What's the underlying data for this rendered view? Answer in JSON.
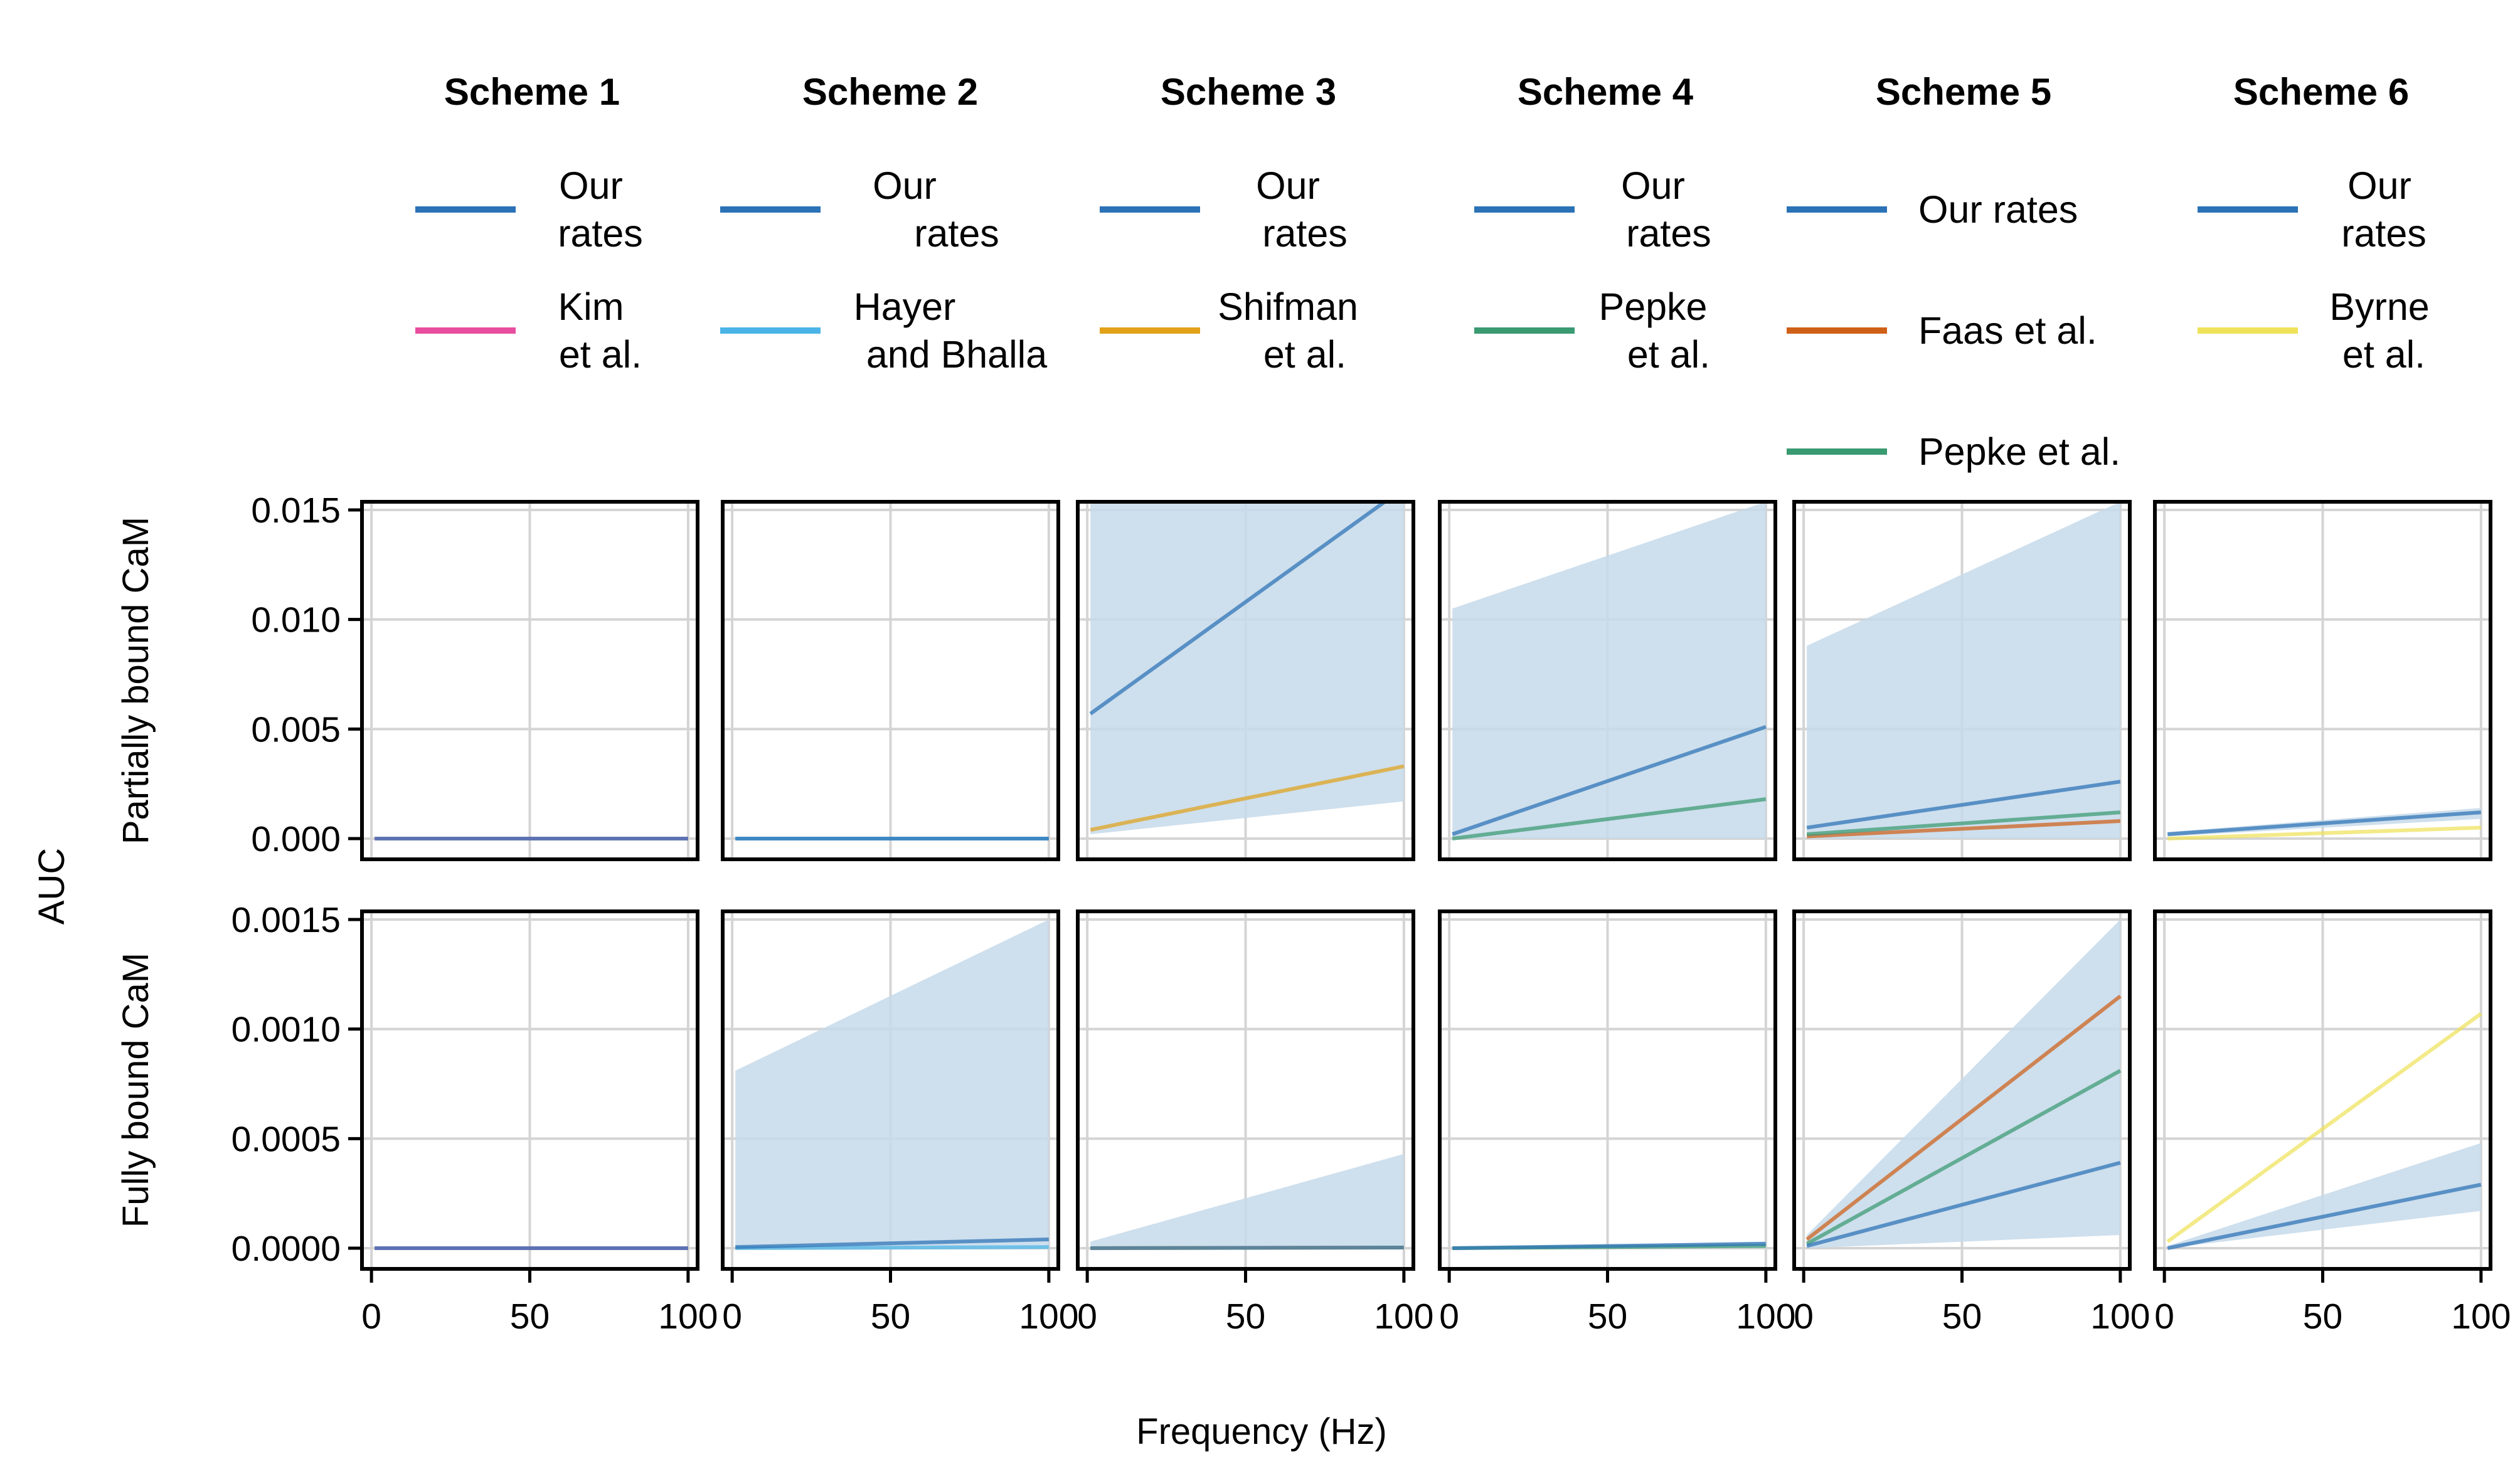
{
  "figure": {
    "supylabel": "AUC",
    "supxlabel": "Frequency (Hz)",
    "row_labels": [
      "Partially bound CaM",
      "Fully bound CaM"
    ]
  },
  "colors": {
    "our_rates": "#2b72b6",
    "band": "#c6d9ea",
    "kim": "#e84d9f",
    "hayer": "#4bb4e6",
    "shifman": "#e1a21a",
    "pepke": "#3a9a72",
    "faas": "#cf6017",
    "byrne": "#efe25a",
    "grid": "#d4d4d4",
    "frame": "#000000"
  },
  "legends": [
    {
      "header": "Scheme 1",
      "entries": [
        {
          "lines": [
            "Our",
            "rates"
          ],
          "color_key": "our_rates"
        },
        {
          "lines": [
            "Kim",
            "et al."
          ],
          "color_key": "kim"
        }
      ]
    },
    {
      "header": "Scheme 2",
      "entries": [
        {
          "lines": [
            "Our",
            "rates"
          ],
          "color_key": "our_rates"
        },
        {
          "lines": [
            "Hayer",
            "and Bhalla"
          ],
          "color_key": "hayer"
        }
      ]
    },
    {
      "header": "Scheme 3",
      "entries": [
        {
          "lines": [
            "Our",
            "rates"
          ],
          "color_key": "our_rates"
        },
        {
          "lines": [
            "Shifman",
            "et al."
          ],
          "color_key": "shifman"
        }
      ]
    },
    {
      "header": "Scheme 4",
      "entries": [
        {
          "lines": [
            "Our",
            "rates"
          ],
          "color_key": "our_rates"
        },
        {
          "lines": [
            "Pepke",
            "et al."
          ],
          "color_key": "pepke"
        }
      ]
    },
    {
      "header": "Scheme 5",
      "entries": [
        {
          "lines": [
            "Our rates"
          ],
          "color_key": "our_rates"
        },
        {
          "lines": [
            "Faas et al."
          ],
          "color_key": "faas"
        },
        {
          "lines": [
            "Pepke et al."
          ],
          "color_key": "pepke"
        }
      ]
    },
    {
      "header": "Scheme 6",
      "entries": [
        {
          "lines": [
            "Our",
            "rates"
          ],
          "color_key": "our_rates"
        },
        {
          "lines": [
            "Byrne",
            "et al."
          ],
          "color_key": "byrne"
        }
      ]
    }
  ],
  "chart_data": {
    "type": "line",
    "layout": "grid 2 rows x 6 columns, shared axes",
    "grid": true,
    "xlim": [
      -3,
      103
    ],
    "x_ticks": [
      0,
      50,
      100
    ],
    "x_tick_labels": [
      "0",
      "50",
      "100"
    ],
    "rows": [
      {
        "label": "Partially bound CaM",
        "ylim": [
          -0.001,
          0.016
        ],
        "y_ticks": [
          0,
          0.005,
          0.01,
          0.015
        ],
        "y_tick_labels": [
          "0.000",
          "0.005",
          "0.010",
          "0.015"
        ]
      },
      {
        "label": "Fully bound CaM",
        "ylim": [
          -0.0001,
          0.0015
        ],
        "y_ticks": [
          0,
          0.0005,
          0.001,
          0.0015
        ],
        "y_tick_labels": [
          "0.0000",
          "0.0005",
          "0.0010",
          "0.0015"
        ]
      }
    ],
    "panels": [
      {
        "row": 0,
        "col": 0,
        "band": null,
        "series": [
          {
            "name": "Our rates",
            "color_key": "our_rates",
            "x": [
              1,
              100
            ],
            "y": [
              0,
              0
            ]
          },
          {
            "name": "Kim et al.",
            "color_key": "kim",
            "x": [
              1,
              100
            ],
            "y": [
              0,
              0
            ]
          }
        ]
      },
      {
        "row": 0,
        "col": 1,
        "band": null,
        "series": [
          {
            "name": "Our rates",
            "color_key": "our_rates",
            "x": [
              1,
              100
            ],
            "y": [
              0,
              0
            ]
          },
          {
            "name": "Hayer and Bhalla",
            "color_key": "hayer",
            "x": [
              1,
              100
            ],
            "y": [
              0,
              0
            ]
          }
        ]
      },
      {
        "row": 0,
        "col": 2,
        "band": {
          "x": [
            1,
            100
          ],
          "lower": [
            0.0002,
            0.0017
          ],
          "upper": [
            0.016,
            0.016
          ]
        },
        "series": [
          {
            "name": "Our rates",
            "color_key": "our_rates",
            "x": [
              1,
              100
            ],
            "y": [
              0.0057,
              0.016
            ]
          },
          {
            "name": "Shifman et al.",
            "color_key": "shifman",
            "x": [
              1,
              100
            ],
            "y": [
              0.0004,
              0.0033
            ]
          }
        ]
      },
      {
        "row": 0,
        "col": 3,
        "band": {
          "x": [
            1,
            100
          ],
          "lower": [
            0.0,
            0.0
          ],
          "upper": [
            0.0105,
            0.016
          ]
        },
        "series": [
          {
            "name": "Our rates",
            "color_key": "our_rates",
            "x": [
              1,
              100
            ],
            "y": [
              0.0002,
              0.0051
            ]
          },
          {
            "name": "Pepke et al.",
            "color_key": "pepke",
            "x": [
              1,
              100
            ],
            "y": [
              0.0,
              0.0018
            ]
          }
        ]
      },
      {
        "row": 0,
        "col": 4,
        "band": {
          "x": [
            1,
            100
          ],
          "lower": [
            0.0,
            0.0
          ],
          "upper": [
            0.0088,
            0.016
          ]
        },
        "series": [
          {
            "name": "Our rates",
            "color_key": "our_rates",
            "x": [
              1,
              100
            ],
            "y": [
              0.0005,
              0.0026
            ]
          },
          {
            "name": "Faas et al.",
            "color_key": "faas",
            "x": [
              1,
              100
            ],
            "y": [
              0.0001,
              0.0008
            ]
          },
          {
            "name": "Pepke et al.",
            "color_key": "pepke",
            "x": [
              1,
              100
            ],
            "y": [
              0.0002,
              0.0012
            ]
          }
        ]
      },
      {
        "row": 0,
        "col": 5,
        "band": {
          "x": [
            1,
            100
          ],
          "lower": [
            0.0001,
            0.0009
          ],
          "upper": [
            0.0003,
            0.0014
          ]
        },
        "series": [
          {
            "name": "Our rates",
            "color_key": "our_rates",
            "x": [
              1,
              100
            ],
            "y": [
              0.0002,
              0.0012
            ]
          },
          {
            "name": "Byrne et al.",
            "color_key": "byrne",
            "x": [
              1,
              100
            ],
            "y": [
              0.0,
              0.0005
            ]
          }
        ]
      },
      {
        "row": 1,
        "col": 0,
        "band": null,
        "series": [
          {
            "name": "Our rates",
            "color_key": "our_rates",
            "x": [
              1,
              100
            ],
            "y": [
              0,
              0
            ]
          },
          {
            "name": "Kim et al.",
            "color_key": "kim",
            "x": [
              1,
              100
            ],
            "y": [
              0,
              0
            ]
          }
        ]
      },
      {
        "row": 1,
        "col": 1,
        "band": {
          "x": [
            1,
            100
          ],
          "lower": [
            0.0,
            0.0
          ],
          "upper": [
            0.00081,
            0.0015
          ]
        },
        "series": [
          {
            "name": "Our rates",
            "color_key": "our_rates",
            "x": [
              1,
              100
            ],
            "y": [
              5e-06,
              4e-05
            ]
          },
          {
            "name": "Hayer and Bhalla",
            "color_key": "hayer",
            "x": [
              1,
              100
            ],
            "y": [
              0.0,
              5e-06
            ]
          }
        ]
      },
      {
        "row": 1,
        "col": 2,
        "band": {
          "x": [
            1,
            100
          ],
          "lower": [
            0.0,
            0.0
          ],
          "upper": [
            3e-05,
            0.00043
          ]
        },
        "series": [
          {
            "name": "Our rates",
            "color_key": "our_rates",
            "x": [
              1,
              100
            ],
            "y": [
              0.0,
              3e-06
            ]
          },
          {
            "name": "Shifman et al.",
            "color_key": "shifman",
            "x": [
              1,
              100
            ],
            "y": [
              0.0,
              3e-06
            ]
          }
        ]
      },
      {
        "row": 1,
        "col": 3,
        "band": {
          "x": [
            1,
            100
          ],
          "lower": [
            0.0,
            0.0
          ],
          "upper": [
            5e-06,
            3e-05
          ]
        },
        "series": [
          {
            "name": "Our rates",
            "color_key": "our_rates",
            "x": [
              1,
              100
            ],
            "y": [
              0.0,
              2e-05
            ]
          },
          {
            "name": "Pepke et al.",
            "color_key": "pepke",
            "x": [
              1,
              100
            ],
            "y": [
              0.0,
              1e-05
            ]
          }
        ]
      },
      {
        "row": 1,
        "col": 4,
        "band": {
          "x": [
            1,
            100
          ],
          "lower": [
            0.0,
            6e-05
          ],
          "upper": [
            6e-05,
            0.0015
          ]
        },
        "series": [
          {
            "name": "Our rates",
            "color_key": "our_rates",
            "x": [
              1,
              100
            ],
            "y": [
              1e-05,
              0.00039
            ]
          },
          {
            "name": "Faas et al.",
            "color_key": "faas",
            "x": [
              1,
              100
            ],
            "y": [
              4e-05,
              0.00115
            ]
          },
          {
            "name": "Pepke et al.",
            "color_key": "pepke",
            "x": [
              1,
              100
            ],
            "y": [
              2e-05,
              0.00081
            ]
          }
        ]
      },
      {
        "row": 1,
        "col": 5,
        "band": {
          "x": [
            1,
            100
          ],
          "lower": [
            0.0,
            0.00017
          ],
          "upper": [
            1e-05,
            0.00048
          ]
        },
        "series": [
          {
            "name": "Our rates",
            "color_key": "our_rates",
            "x": [
              1,
              100
            ],
            "y": [
              0.0,
              0.00029
            ]
          },
          {
            "name": "Byrne et al.",
            "color_key": "byrne",
            "x": [
              1,
              100
            ],
            "y": [
              3e-05,
              0.00107
            ]
          }
        ]
      }
    ]
  }
}
